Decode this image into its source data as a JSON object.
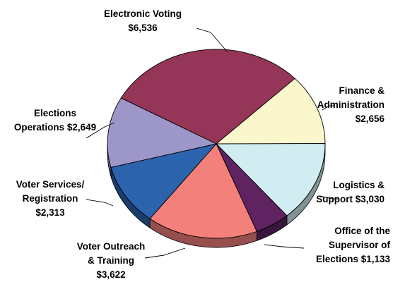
{
  "chart_data": {
    "type": "pie",
    "title": "",
    "style": "3d",
    "slices": [
      {
        "name": "Electronic Voting",
        "label_lines": [
          "Electronic Voting",
          "$6,536"
        ],
        "value": 6536,
        "color": "#953558"
      },
      {
        "name": "Finance & Administration",
        "label_lines": [
          "Finance &",
          "Administration",
          "$2,656"
        ],
        "value": 2656,
        "color": "#FBF7CD"
      },
      {
        "name": "Logistics & Support",
        "label_lines": [
          "Logistics &",
          "Support $3,030"
        ],
        "value": 3030,
        "color": "#D2EDF1"
      },
      {
        "name": "Office of the Supervisor of Elections",
        "label_lines": [
          "Office of the",
          "Supervisor of",
          "Elections $1,133"
        ],
        "value": 1133,
        "color": "#5E2360"
      },
      {
        "name": "Voter Outreach & Training",
        "label_lines": [
          "Voter Outreach",
          "& Training",
          "$3,622"
        ],
        "value": 3622,
        "color": "#F4807C"
      },
      {
        "name": "Voter Services/ Registration",
        "label_lines": [
          "Voter Services/",
          "Registration",
          "$2,313"
        ],
        "value": 2313,
        "color": "#2B63AC"
      },
      {
        "name": "Elections Operations",
        "label_lines": [
          "Elections",
          "Operations $2,649"
        ],
        "value": 2649,
        "color": "#9C96C9"
      }
    ]
  }
}
